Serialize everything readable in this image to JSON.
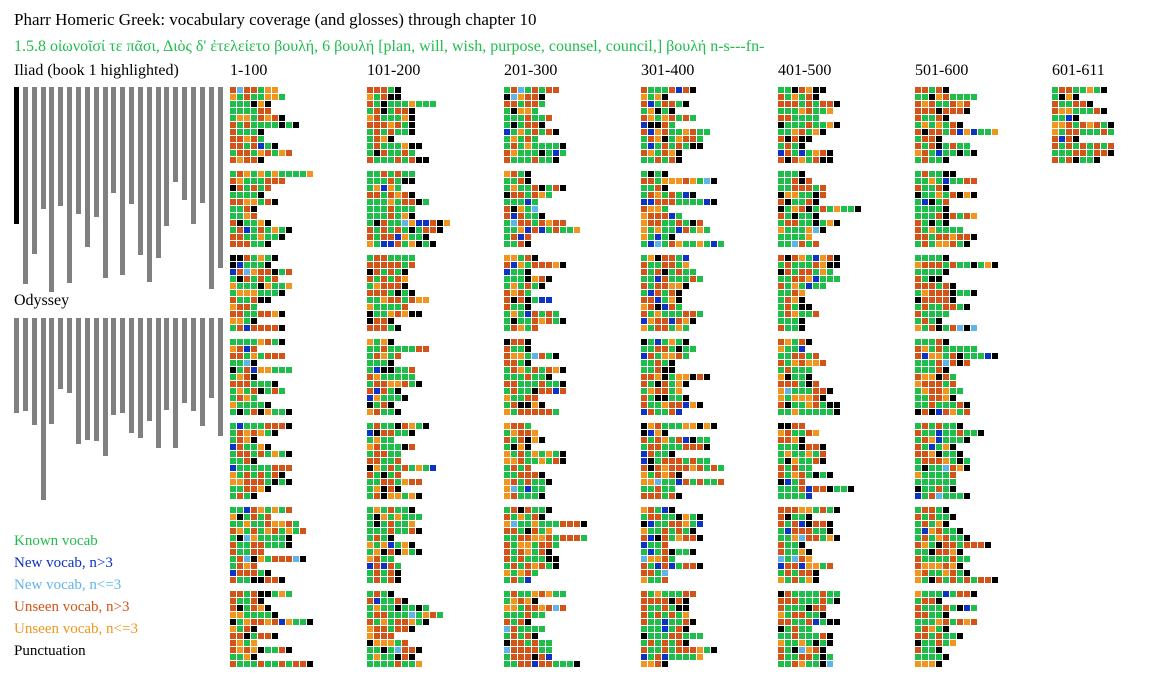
{
  "title": "Pharr Homeric Greek: vocabulary coverage (and glosses) through chapter 10",
  "gloss": "1.5.8 οἰωνοῖσί τε πᾶσι, Διὸς δ' ἐτελείετο βουλή, 6 βουλή [plan, will, wish, purpose, counsel, council,] βουλή n-s---fn-",
  "iliad_label": "Iliad (book 1 highlighted)",
  "odyssey_label": "Odyssey",
  "column_labels": [
    "1-100",
    "101-200",
    "201-300",
    "301-400",
    "401-500",
    "501-600",
    "601-611"
  ],
  "iliad_books": {
    "highlighted": 1,
    "relative_lengths": [
      0.611,
      0.877,
      0.741,
      0.544,
      0.909,
      0.529,
      0.869,
      0.565,
      0.713,
      0.579,
      0.848,
      0.471,
      0.837,
      0.522,
      0.746,
      0.867,
      0.761,
      0.617,
      0.424,
      0.503,
      0.611,
      0.515,
      0.897,
      0.804
    ]
  },
  "odyssey_books": {
    "relative_lengths": [
      0.444,
      0.434,
      0.497,
      0.846,
      0.493,
      0.331,
      0.347,
      0.586,
      0.566,
      0.574,
      0.64,
      0.453,
      0.44,
      0.533,
      0.557,
      0.481,
      0.606,
      0.428,
      0.604,
      0.394,
      0.434,
      0.501,
      0.372,
      0.548
    ]
  },
  "legend": [
    {
      "label": "Known vocab",
      "color": "#1fbd4c"
    },
    {
      "label": "New vocab, n>3",
      "color": "#0d33c4"
    },
    {
      "label": "New vocab, n<=3",
      "color": "#5fb5e8"
    },
    {
      "label": "Unseen vocab, n>3",
      "color": "#d35418"
    },
    {
      "label": "Unseen vocab, n<=3",
      "color": "#f0961e"
    },
    {
      "label": "Punctuation",
      "color": "#000000"
    }
  ],
  "colors": {
    "bar": "#808080",
    "bar_highlight": "#000000",
    "known": "#1fbd4c",
    "new_many": "#0d33c4",
    "new_few": "#5fb5e8",
    "unseen_many": "#d35418",
    "unseen_few": "#f0961e",
    "punct": "#000000"
  }
}
